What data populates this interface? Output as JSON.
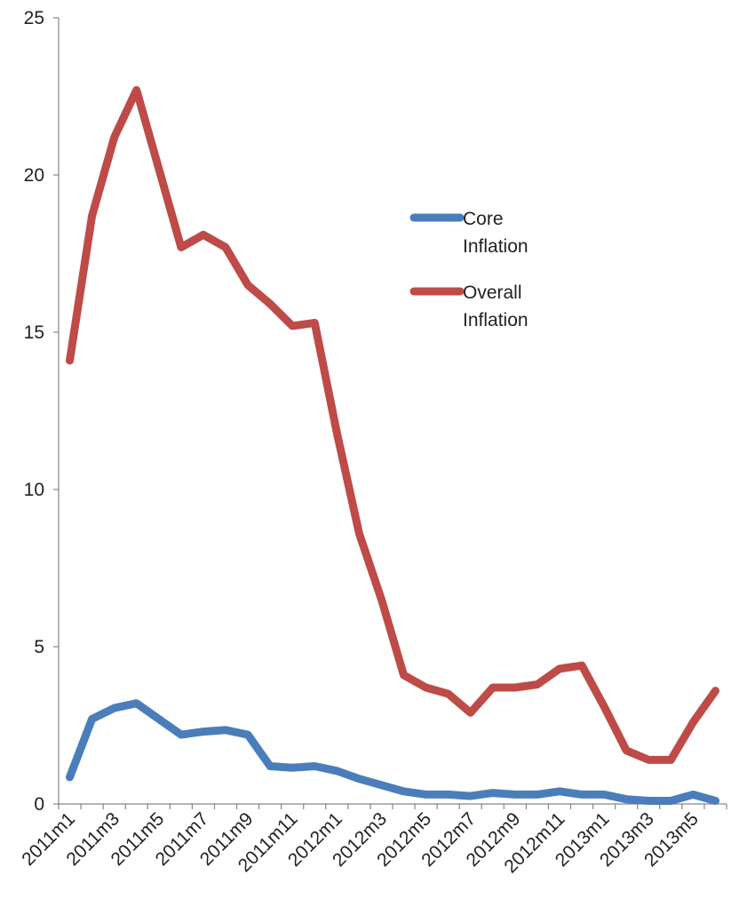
{
  "chart_data": {
    "type": "line",
    "title": "",
    "xlabel": "",
    "ylabel": "",
    "ylim": [
      0,
      25
    ],
    "yticks": [
      "0",
      "5",
      "10",
      "15",
      "20",
      "25"
    ],
    "x": [
      "2011m1",
      "2011m2",
      "2011m3",
      "2011m4",
      "2011m5",
      "2011m6",
      "2011m7",
      "2011m8",
      "2011m9",
      "2011m10",
      "2011m11",
      "2011m12",
      "2012m1",
      "2012m2",
      "2012m3",
      "2012m4",
      "2012m5",
      "2012m6",
      "2012m7",
      "2012m8",
      "2012m9",
      "2012m10",
      "2012m11",
      "2012m12",
      "2013m1",
      "2013m2",
      "2013m3",
      "2013m4",
      "2013m5",
      "2013m6"
    ],
    "xtick_labels": [
      "2011m1",
      "2011m3",
      "2011m5",
      "2011m7",
      "2011m9",
      "2011m11",
      "2012m1",
      "2012m3",
      "2012m5",
      "2012m7",
      "2012m9",
      "2012m11",
      "2013m1",
      "2013m3",
      "2013m5"
    ],
    "grid": false,
    "legend_position": "right",
    "series": [
      {
        "name": "Core Inflation",
        "name_lines": [
          "Core",
          "Inflation"
        ],
        "color": "#4a7ebb",
        "values": [
          0.85,
          2.7,
          3.05,
          3.2,
          2.7,
          2.2,
          2.3,
          2.35,
          2.2,
          1.2,
          1.15,
          1.2,
          1.05,
          0.8,
          0.6,
          0.4,
          0.3,
          0.3,
          0.25,
          0.35,
          0.3,
          0.3,
          0.4,
          0.3,
          0.3,
          0.15,
          0.1,
          0.1,
          0.3,
          0.1
        ]
      },
      {
        "name": "Overall Inflation",
        "name_lines": [
          "Overall",
          "Inflation"
        ],
        "color": "#be4b48",
        "values": [
          14.1,
          18.7,
          21.2,
          22.7,
          20.2,
          17.7,
          18.1,
          17.7,
          16.5,
          15.9,
          15.2,
          15.3,
          11.8,
          8.6,
          6.5,
          4.1,
          3.7,
          3.5,
          2.9,
          3.7,
          3.7,
          3.8,
          4.3,
          4.4,
          3.1,
          1.7,
          1.4,
          1.4,
          2.6,
          3.6
        ]
      }
    ]
  }
}
